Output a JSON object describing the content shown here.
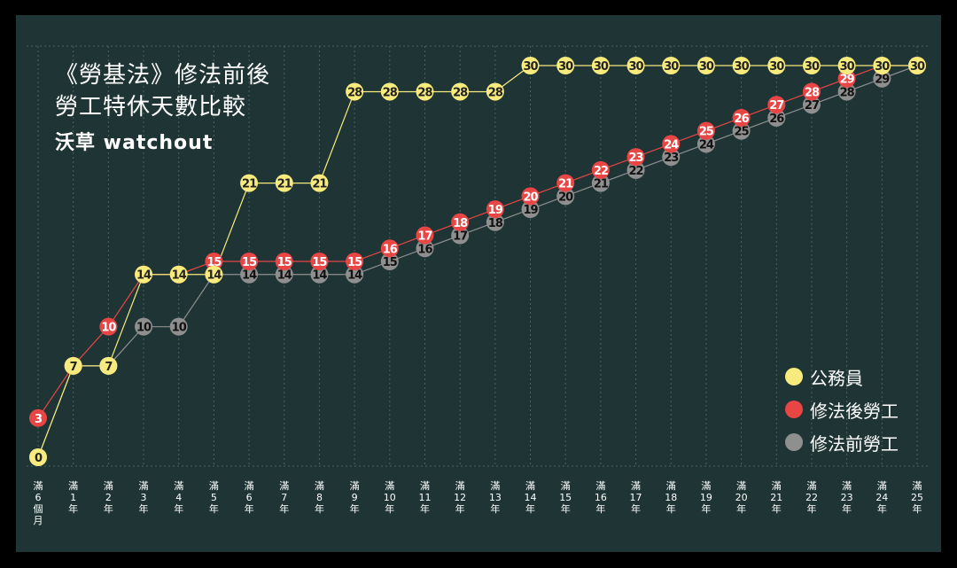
{
  "title_line1": "《勞基法》修法前後",
  "title_line2": "勞工特休天數比較",
  "brand": "沃草 watchout",
  "colors": {
    "background": "#1f3535",
    "frame": "#000000",
    "civil": "#f7eb7e",
    "after": "#e84545",
    "before": "#8f8f8f",
    "grid": "#4a6262"
  },
  "legend": [
    {
      "label": "公務員",
      "color": "#f7eb7e"
    },
    {
      "label": "修法後勞工",
      "color": "#e84545"
    },
    {
      "label": "修法前勞工",
      "color": "#8f8f8f"
    }
  ],
  "chart_data": {
    "type": "line",
    "categories": [
      "滿6個月",
      "滿1年",
      "滿2年",
      "滿3年",
      "滿4年",
      "滿5年",
      "滿6年",
      "滿7年",
      "滿8年",
      "滿9年",
      "滿10年",
      "滿11年",
      "滿12年",
      "滿13年",
      "滿14年",
      "滿15年",
      "滿16年",
      "滿17年",
      "滿18年",
      "滿19年",
      "滿20年",
      "滿21年",
      "滿22年",
      "滿23年",
      "滿24年",
      "滿25年"
    ],
    "x_tick_labels": [
      [
        "滿",
        "6",
        "個",
        "月"
      ],
      [
        "滿",
        "1",
        "年"
      ],
      [
        "滿",
        "2",
        "年"
      ],
      [
        "滿",
        "3",
        "年"
      ],
      [
        "滿",
        "4",
        "年"
      ],
      [
        "滿",
        "5",
        "年"
      ],
      [
        "滿",
        "6",
        "年"
      ],
      [
        "滿",
        "7",
        "年"
      ],
      [
        "滿",
        "8",
        "年"
      ],
      [
        "滿",
        "9",
        "年"
      ],
      [
        "滿",
        "10",
        "年"
      ],
      [
        "滿",
        "11",
        "年"
      ],
      [
        "滿",
        "12",
        "年"
      ],
      [
        "滿",
        "13",
        "年"
      ],
      [
        "滿",
        "14",
        "年"
      ],
      [
        "滿",
        "15",
        "年"
      ],
      [
        "滿",
        "16",
        "年"
      ],
      [
        "滿",
        "17",
        "年"
      ],
      [
        "滿",
        "18",
        "年"
      ],
      [
        "滿",
        "19",
        "年"
      ],
      [
        "滿",
        "20",
        "年"
      ],
      [
        "滿",
        "21",
        "年"
      ],
      [
        "滿",
        "22",
        "年"
      ],
      [
        "滿",
        "23",
        "年"
      ],
      [
        "滿",
        "24",
        "年"
      ],
      [
        "滿",
        "25",
        "年"
      ]
    ],
    "ylim": [
      0,
      30
    ],
    "grid": true,
    "legend_position": "bottom-right",
    "series": [
      {
        "name": "修法前勞工",
        "color": "#8f8f8f",
        "values": [
          0,
          7,
          7,
          10,
          10,
          14,
          14,
          14,
          14,
          14,
          15,
          16,
          17,
          18,
          19,
          20,
          21,
          22,
          23,
          24,
          25,
          26,
          27,
          28,
          29,
          30
        ]
      },
      {
        "name": "修法後勞工",
        "color": "#e84545",
        "values": [
          3,
          7,
          10,
          14,
          14,
          15,
          15,
          15,
          15,
          15,
          16,
          17,
          18,
          19,
          20,
          21,
          22,
          23,
          24,
          25,
          26,
          27,
          28,
          29,
          30,
          30
        ]
      },
      {
        "name": "公務員",
        "color": "#f7eb7e",
        "values": [
          0,
          7,
          7,
          14,
          14,
          14,
          21,
          21,
          21,
          28,
          28,
          28,
          28,
          28,
          30,
          30,
          30,
          30,
          30,
          30,
          30,
          30,
          30,
          30,
          30,
          30
        ]
      }
    ]
  }
}
